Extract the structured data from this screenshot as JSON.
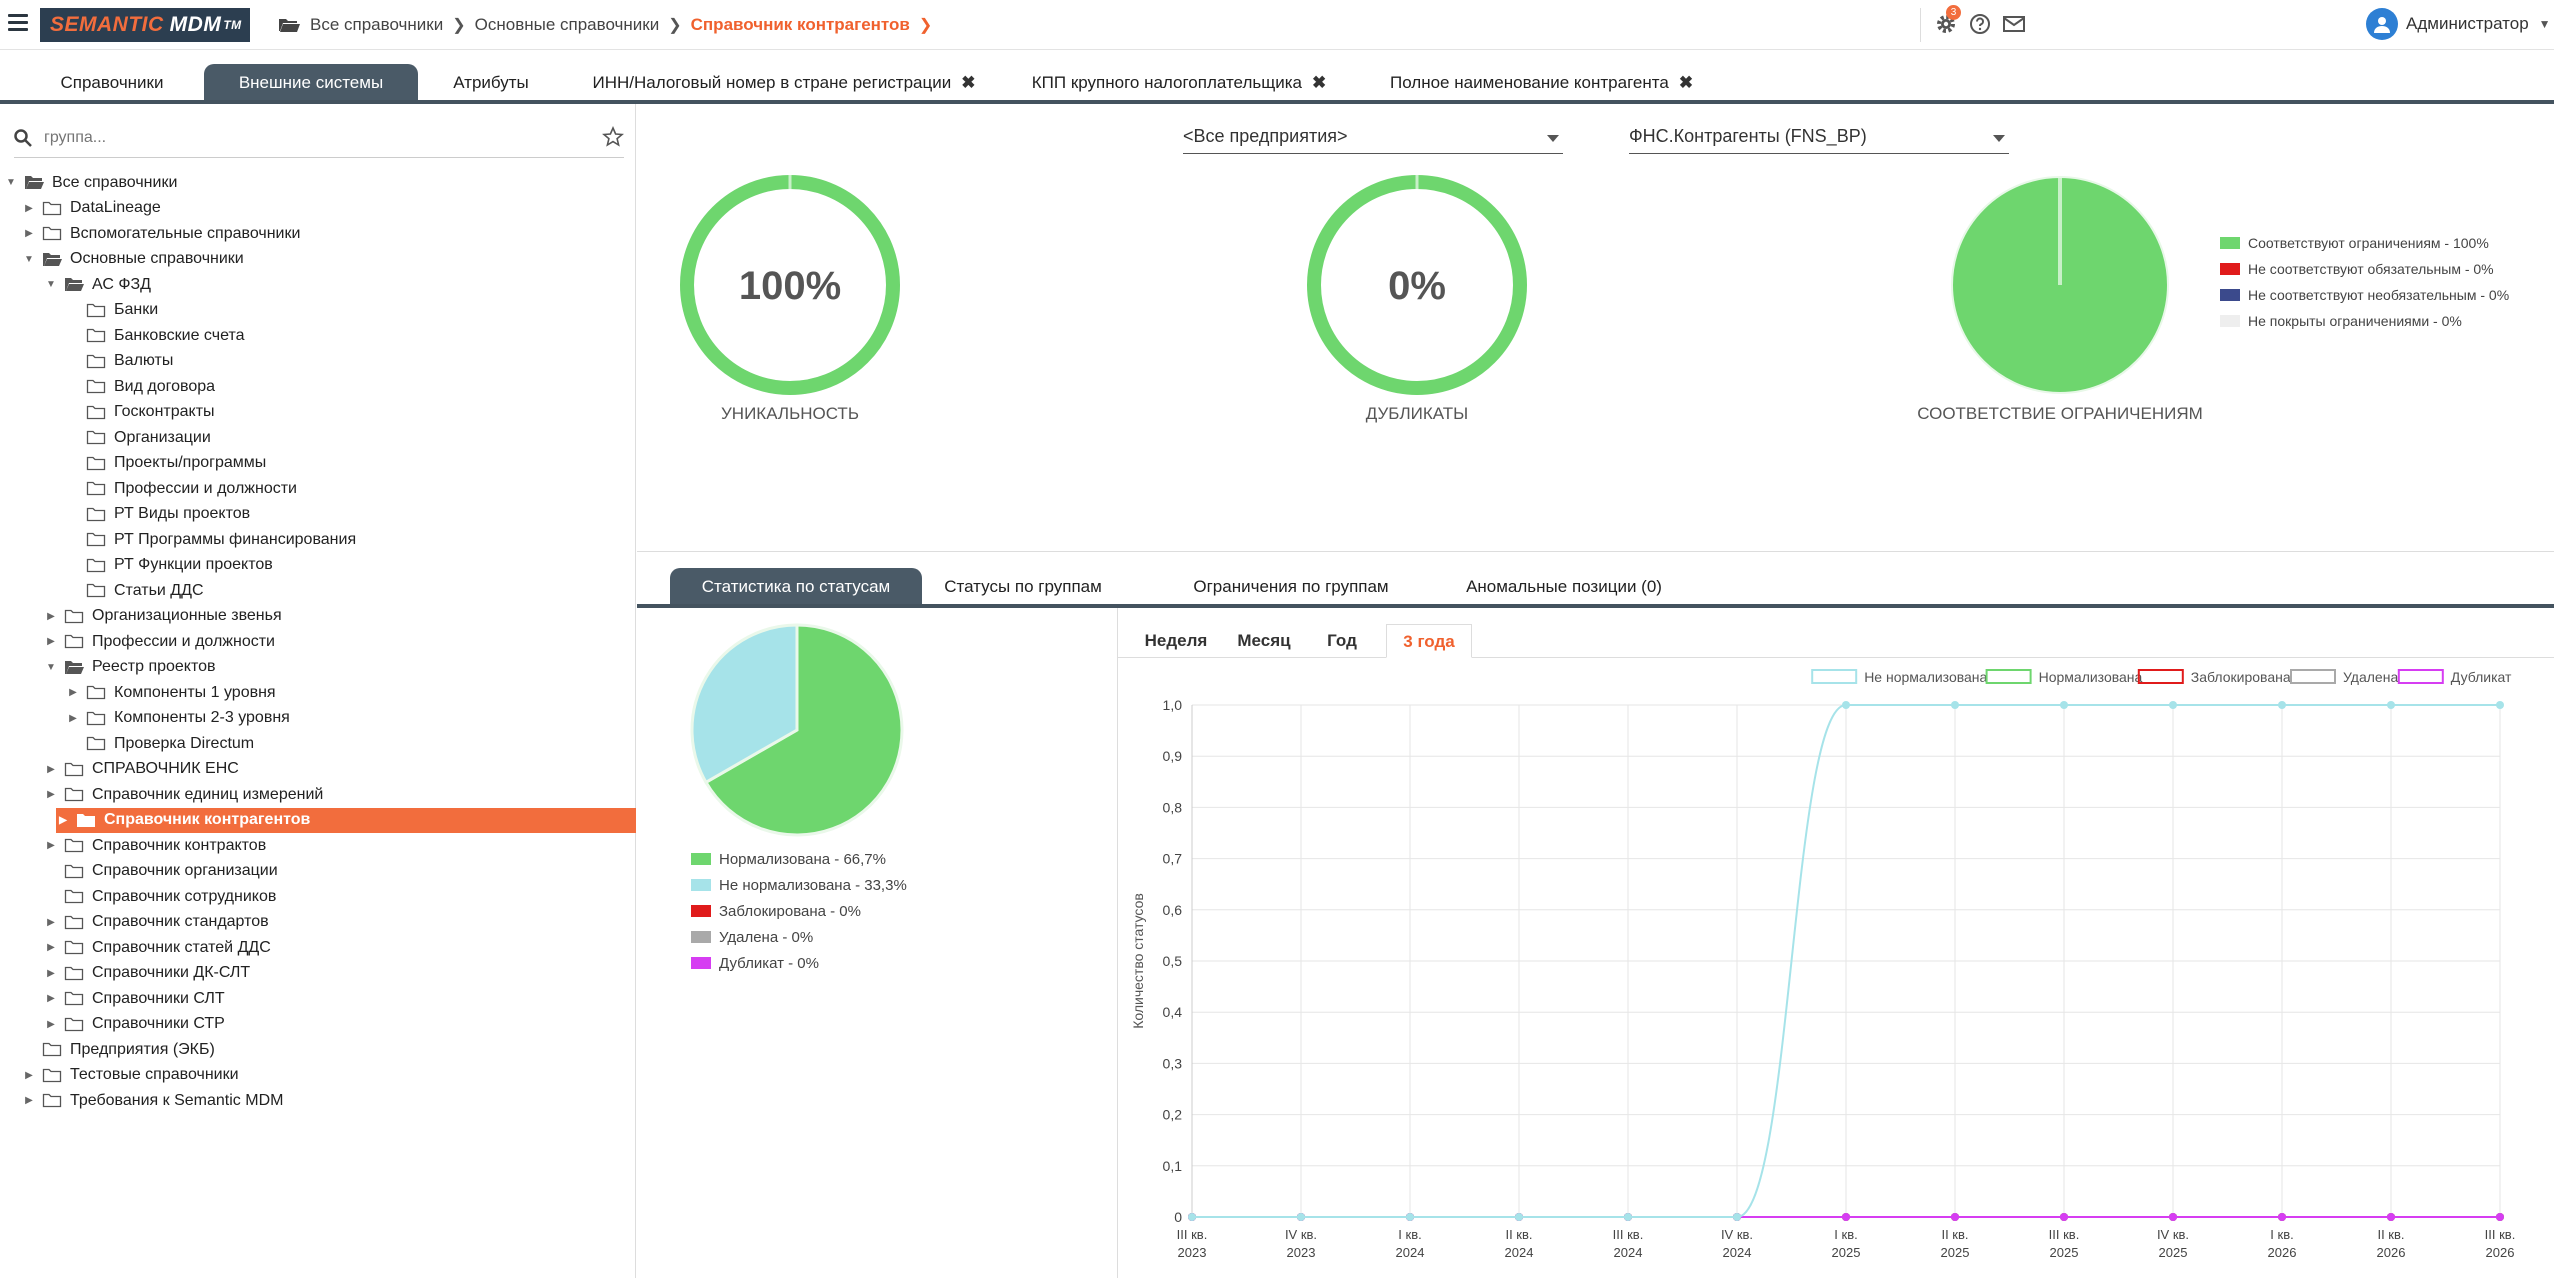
{
  "header": {
    "brand_main": "SEMANTIC",
    "brand_second": "MDM",
    "brand_tm": "TM",
    "breadcrumbs": [
      "Все справочники",
      "Основные справочники",
      "Справочник контрагентов"
    ],
    "settings_badge": "3",
    "user_name": "Администратор"
  },
  "tabs": [
    {
      "label": "Справочники"
    },
    {
      "label": "Внешние системы"
    },
    {
      "label": "Атрибуты"
    },
    {
      "label": "ИНН/Налоговый номер в стране регистрации"
    },
    {
      "label": "КПП крупного налогоплательщика"
    },
    {
      "label": "Полное наименование контрагента"
    }
  ],
  "sidebar": {
    "search_placeholder": "группа...",
    "tree": [
      {
        "label": "Все справочники"
      },
      {
        "label": "DataLineage"
      },
      {
        "label": "Вспомогательные справочники"
      },
      {
        "label": "Основные справочники"
      },
      {
        "label": "АС ФЗД"
      },
      {
        "label": "Банки"
      },
      {
        "label": "Банковские счета"
      },
      {
        "label": "Валюты"
      },
      {
        "label": "Вид договора"
      },
      {
        "label": "Госконтракты"
      },
      {
        "label": "Организации"
      },
      {
        "label": "Проекты/программы"
      },
      {
        "label": "Профессии и должности"
      },
      {
        "label": "РТ Виды проектов"
      },
      {
        "label": "РТ Программы финансирования"
      },
      {
        "label": "РТ Функции проектов"
      },
      {
        "label": "Статьи ДДС"
      },
      {
        "label": "Организационные звенья"
      },
      {
        "label": "Профессии и должности"
      },
      {
        "label": "Реестр проектов"
      },
      {
        "label": "Компоненты 1 уровня"
      },
      {
        "label": "Компоненты 2-3 уровня"
      },
      {
        "label": "Проверка Directum"
      },
      {
        "label": "СПРАВОЧНИК ЕНС"
      },
      {
        "label": "Справочник единиц измерений"
      },
      {
        "label": "Справочник контрагентов"
      },
      {
        "label": "Справочник контрактов"
      },
      {
        "label": "Справочник организации"
      },
      {
        "label": "Справочник сотрудников"
      },
      {
        "label": "Справочник стандартов"
      },
      {
        "label": "Справочник статей ДДС"
      },
      {
        "label": "Справочники ДК-СЛТ"
      },
      {
        "label": "Справочники СЛТ"
      },
      {
        "label": "Справочники СТР"
      },
      {
        "label": "Предприятия (ЭКБ)"
      },
      {
        "label": "Тестовые справочники"
      },
      {
        "label": "Требования к Semantic MDM"
      }
    ]
  },
  "dashboard": {
    "enterprise_select": "<Все предприятия>",
    "system_select": "ФНС.Контрагенты (FNS_BP)",
    "uniqueness_value": "100%",
    "uniqueness_fraction": 1.0,
    "uniqueness_label": "УНИКАЛЬНОСТЬ",
    "duplicates_value": "0%",
    "duplicates_fraction": 0.0,
    "duplicates_label": "ДУБЛИКАТЫ",
    "compliance_label": "СООТВЕТСТВИЕ ОГРАНИЧЕНИЯМ",
    "compliance_legend": [
      {
        "label": "Соответствуют ограничениям - 100%",
        "color": "#6ed66e",
        "value": 100
      },
      {
        "label": "Не соответствуют обязательным - 0%",
        "color": "#e01b1b",
        "value": 0
      },
      {
        "label": "Не соответствуют необязательным - 0%",
        "color": "#3b4a8c",
        "value": 0
      },
      {
        "label": "Не покрыты ограничениями - 0%",
        "color": "#eeeeee",
        "value": 0
      }
    ]
  },
  "bottom_tabs": [
    {
      "label": "Статистика по статусам"
    },
    {
      "label": "Статусы по группам"
    },
    {
      "label": "Ограничения по группам"
    },
    {
      "label": "Аномальные позиции (0)"
    }
  ],
  "status_legend": [
    {
      "label": "Нормализована - 66,7%",
      "color": "#6ed66e",
      "value": 66.7
    },
    {
      "label": "Не нормализована - 33,3%",
      "color": "#a6e3e9",
      "value": 33.3
    },
    {
      "label": "Заблокирована - 0%",
      "color": "#e01b1b",
      "value": 0
    },
    {
      "label": "Удалена - 0%",
      "color": "#a9a9a9",
      "value": 0
    },
    {
      "label": "Дубликат - 0%",
      "color": "#d63df2",
      "value": 0
    }
  ],
  "periods": [
    {
      "label": "Неделя"
    },
    {
      "label": "Месяц"
    },
    {
      "label": "Год"
    },
    {
      "label": "3 года"
    }
  ],
  "chart_data": {
    "type": "line",
    "ylabel": "Количество статусов",
    "ylim": [
      0,
      1
    ],
    "yticks": [
      "0",
      "0,1",
      "0,2",
      "0,3",
      "0,4",
      "0,5",
      "0,6",
      "0,7",
      "0,8",
      "0,9",
      "1,0"
    ],
    "categories": [
      [
        "III кв.",
        "2023"
      ],
      [
        "IV кв.",
        "2023"
      ],
      [
        "I кв.",
        "2024"
      ],
      [
        "II кв.",
        "2024"
      ],
      [
        "III кв.",
        "2024"
      ],
      [
        "IV кв.",
        "2024"
      ],
      [
        "I кв.",
        "2025"
      ],
      [
        "II кв.",
        "2025"
      ],
      [
        "III кв.",
        "2025"
      ],
      [
        "IV кв.",
        "2025"
      ],
      [
        "I кв.",
        "2026"
      ],
      [
        "II кв.",
        "2026"
      ],
      [
        "III кв.",
        "2026"
      ]
    ],
    "legend_position": "top-right",
    "series": [
      {
        "name": "Не нормализована",
        "color": "#a6e3e9",
        "values": [
          0,
          0,
          0,
          0,
          0,
          0,
          1,
          1,
          1,
          1,
          1,
          1,
          1
        ]
      },
      {
        "name": "Нормализована",
        "color": "#6ed66e",
        "values": [
          0,
          0,
          0,
          0,
          0,
          0,
          0,
          0,
          0,
          0,
          0,
          0,
          0
        ]
      },
      {
        "name": "Заблокирована",
        "color": "#e01b1b",
        "values": [
          0,
          0,
          0,
          0,
          0,
          0,
          0,
          0,
          0,
          0,
          0,
          0,
          0
        ]
      },
      {
        "name": "Удалена",
        "color": "#a9a9a9",
        "values": [
          0,
          0,
          0,
          0,
          0,
          0,
          0,
          0,
          0,
          0,
          0,
          0,
          0
        ]
      },
      {
        "name": "Дубликат",
        "color": "#d63df2",
        "values": [
          0,
          0,
          0,
          0,
          0,
          0,
          0,
          0,
          0,
          0,
          0,
          0,
          0
        ]
      }
    ]
  }
}
